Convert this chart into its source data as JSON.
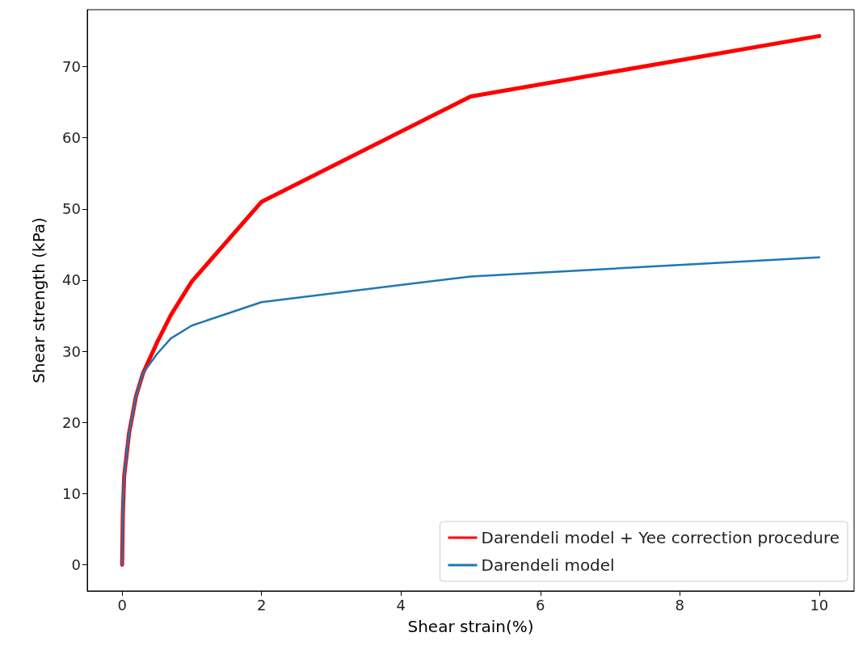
{
  "chart_data": {
    "type": "line",
    "xlabel": "Shear strain(%)",
    "ylabel": "Shear strength (kPa)",
    "x": [
      0,
      0.01,
      0.03,
      0.1,
      0.2,
      0.3,
      0.5,
      0.7,
      1,
      2,
      5,
      10
    ],
    "series": [
      {
        "name": "Darendeli model + Yee correction procedure",
        "color": "#ff0000",
        "values": [
          0,
          7,
          12.5,
          18.5,
          23.7,
          26.9,
          31.2,
          35.1,
          39.8,
          51.0,
          65.8,
          74.3
        ]
      },
      {
        "name": "Darendeli model",
        "color": "#1f77b4",
        "values": [
          0,
          7,
          12.5,
          18.5,
          23.7,
          26.9,
          29.6,
          31.8,
          33.6,
          36.9,
          40.5,
          43.2
        ]
      }
    ],
    "xlim": [
      -0.5,
      10.5
    ],
    "xticks": [
      0,
      2,
      4,
      6,
      8,
      10
    ],
    "ylim": [
      -3.7,
      78
    ],
    "yticks": [
      0,
      10,
      20,
      30,
      40,
      50,
      60,
      70
    ],
    "grid": false,
    "legend": "bottom right",
    "marker": "none",
    "line_style": "solid"
  }
}
